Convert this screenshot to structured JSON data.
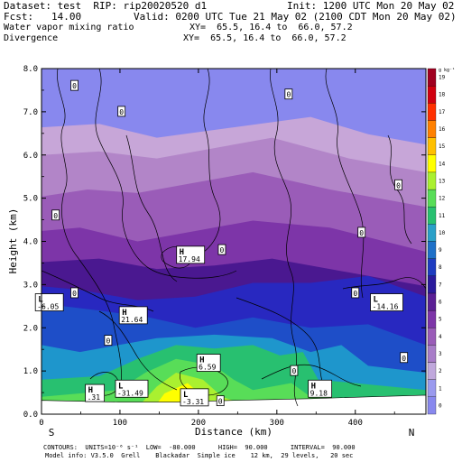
{
  "header": {
    "dataset": "Dataset: test  RIP: rip20020520 d1",
    "init": "Init: 1200 UTC Mon 20 May 02",
    "fcst": "Fcst:   14.00",
    "valid": "Valid: 0200 UTC Tue 21 May 02 (2100 CDT Mon 20 May 02)",
    "field1": "Water vapor mixing ratio",
    "xy1": "XY=  65.5, 16.4 to  66.0, 57.2",
    "field2": "Divergence",
    "xy2": "XY=  65.5, 16.4 to  66.0, 57.2"
  },
  "footer": {
    "line1": "CONTOURS:  UNITS=10⁻⁶ s⁻¹  LOW=  -80.000      HIGH=  90.000      INTERVAL=  90.000",
    "line2": "Model info: V3.5.0  Grell    Blackadar  Simple ice    12 km,  29 levels,   20 sec"
  },
  "compass": {
    "left": "S",
    "right": "N"
  },
  "colors": {
    "plot_bg": "#8888ee",
    "terrain": "#ffffff",
    "bands": [
      "#c7a6d8",
      "#b285c8",
      "#9a5cb8",
      "#7d35a8",
      "#4a1890",
      "#2828c0",
      "#1e4ec8",
      "#1e96cc",
      "#28c070",
      "#58dd58",
      "#aaf030",
      "#ffff00"
    ]
  },
  "chart_data": {
    "type": "contour",
    "xlabel": "Distance (km)",
    "ylabel": "Height (km)",
    "xlim": [
      0,
      490
    ],
    "ylim": [
      0,
      8
    ],
    "xticks": [
      0,
      100,
      200,
      300,
      400
    ],
    "yticks": [
      0.0,
      1.0,
      2.0,
      3.0,
      4.0,
      5.0,
      6.0,
      7.0,
      8.0
    ],
    "colorbar": {
      "unit": "g kg⁻¹",
      "labels": [
        "0",
        "1",
        "2",
        "3",
        "4",
        "5",
        "6",
        "7",
        "8",
        "9",
        "10",
        "11",
        "12",
        "13",
        "14",
        "15",
        "16",
        "17",
        "18",
        "19"
      ],
      "colors": [
        "#8888ee",
        "#9a9aee",
        "#c0a8dc",
        "#a87cc8",
        "#9a5cb8",
        "#7d35a8",
        "#5a1f95",
        "#2a1a9c",
        "#1e3cc0",
        "#1e70c8",
        "#2aa0c8",
        "#28c070",
        "#58dd58",
        "#aaf030",
        "#ffff00",
        "#ffc000",
        "#ff8000",
        "#ff3000",
        "#d00010",
        "#a00020"
      ]
    },
    "contour_labels": [
      {
        "text": "0",
        "x": 42,
        "y": 7.6
      },
      {
        "text": "0",
        "x": 102,
        "y": 7.0
      },
      {
        "text": "0",
        "x": 315,
        "y": 7.4
      },
      {
        "text": "0",
        "x": 455,
        "y": 5.3
      },
      {
        "text": "0",
        "x": 18,
        "y": 4.6
      },
      {
        "text": "0",
        "x": 230,
        "y": 3.8
      },
      {
        "text": "0",
        "x": 408,
        "y": 4.2
      },
      {
        "text": "0",
        "x": 42,
        "y": 2.8
      },
      {
        "text": "0",
        "x": 400,
        "y": 2.8
      },
      {
        "text": "0",
        "x": 85,
        "y": 1.7
      },
      {
        "text": "0",
        "x": 462,
        "y": 1.3
      },
      {
        "text": "0",
        "x": 322,
        "y": 1.0
      },
      {
        "text": "0",
        "x": 228,
        "y": 0.3
      }
    ],
    "extrema": [
      {
        "type": "H",
        "value": "17.94",
        "x": 190,
        "y": 3.7
      },
      {
        "type": "H",
        "value": "21.64",
        "x": 117,
        "y": 2.3
      },
      {
        "type": "H",
        "value": "6.59",
        "x": 213,
        "y": 1.2
      },
      {
        "type": "H",
        "value": "9.18",
        "x": 355,
        "y": 0.6
      },
      {
        "type": "H",
        "value": ".31",
        "x": 68,
        "y": 0.5
      },
      {
        "type": "L",
        "value": "-6.05",
        "x": 10,
        "y": 2.6
      },
      {
        "type": "L",
        "value": "-14.16",
        "x": 440,
        "y": 2.6
      },
      {
        "type": "L",
        "value": "-31.49",
        "x": 115,
        "y": 0.6
      },
      {
        "type": "L",
        "value": "-3.31",
        "x": 195,
        "y": 0.4
      }
    ]
  }
}
